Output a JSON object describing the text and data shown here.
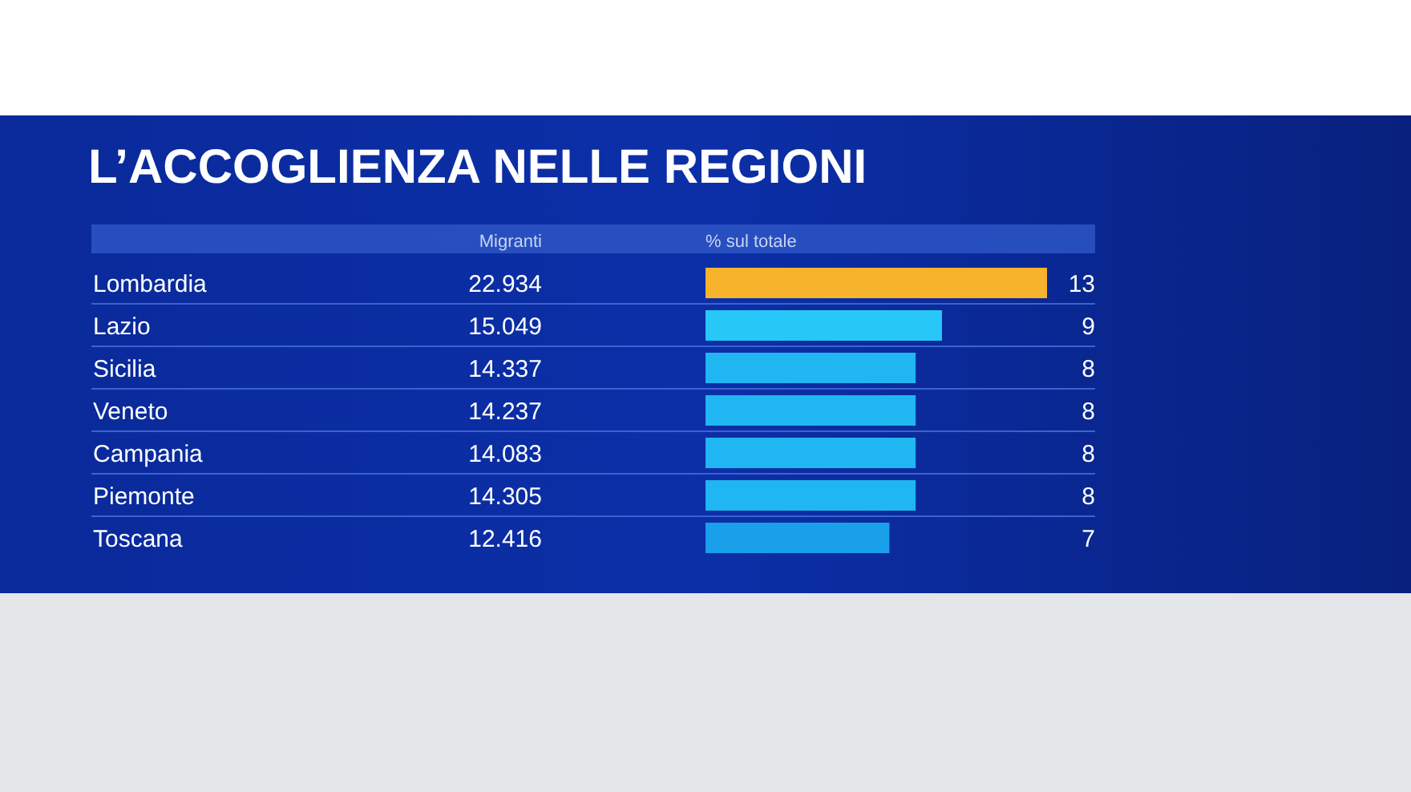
{
  "chart_data": {
    "type": "bar",
    "orientation": "horizontal",
    "title": "L’ACCOGLIENZA NELLE REGIONI",
    "xlabel": "% sul totale",
    "categories": [
      "Lombardia",
      "Lazio",
      "Sicilia",
      "Veneto",
      "Campania",
      "Piemonte",
      "Toscana"
    ],
    "values": [
      13,
      9,
      8,
      8,
      8,
      8,
      7
    ],
    "colors": [
      "#f7b32b",
      "#27c8f8",
      "#1fb6f2",
      "#1fb6f2",
      "#1fb6f2",
      "#1fb6f2",
      "#1a9fea"
    ],
    "data_labels": true,
    "annotations": [
      "Migranti",
      "22.934",
      "15.049",
      "14.337",
      "14.237",
      "14.083",
      "14.305",
      "12.416"
    ]
  }
}
